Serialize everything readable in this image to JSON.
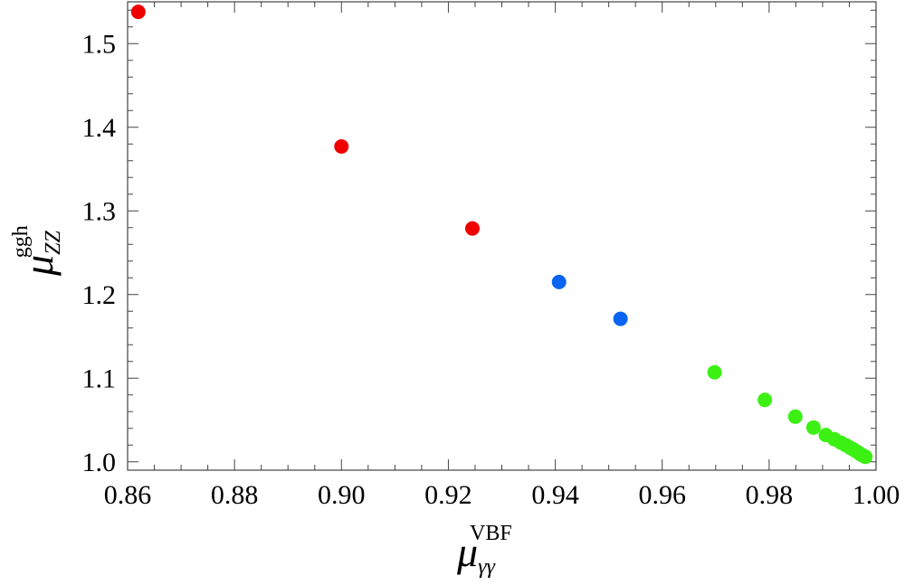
{
  "chart_data": {
    "type": "scatter",
    "xlabel": {
      "main": "μ",
      "sub": "γγ",
      "sup": "VBF"
    },
    "ylabel": {
      "main": "μ",
      "sub": "ZZ",
      "sup": "ggh"
    },
    "xlim": [
      0.86,
      1.0
    ],
    "ylim": [
      0.99,
      1.55
    ],
    "xticks": [
      "0.86",
      "0.88",
      "0.90",
      "0.92",
      "0.94",
      "0.96",
      "0.98",
      "1.00"
    ],
    "yticks": [
      "1.0",
      "1.1",
      "1.2",
      "1.3",
      "1.4",
      "1.5"
    ],
    "grid": false,
    "series": [
      {
        "color": "#ee0000",
        "x": [
          0.862,
          0.9,
          0.9245
        ],
        "y": [
          1.538,
          1.377,
          1.279
        ]
      },
      {
        "color": "#0a64f0",
        "x": [
          0.9407,
          0.9522
        ],
        "y": [
          1.215,
          1.171
        ]
      },
      {
        "color": "#3cf014",
        "x": [
          0.9698,
          0.9792,
          0.9849,
          0.9883,
          0.9906,
          0.9922,
          0.9934,
          0.9943,
          0.9951,
          0.9957,
          0.9962,
          0.9967,
          0.9971,
          0.9974,
          0.9977,
          0.998
        ],
        "y": [
          1.107,
          1.074,
          1.054,
          1.041,
          1.032,
          1.027,
          1.023,
          1.02,
          1.017,
          1.015,
          1.013,
          1.011,
          1.009,
          1.008,
          1.007,
          1.006
        ]
      }
    ]
  }
}
